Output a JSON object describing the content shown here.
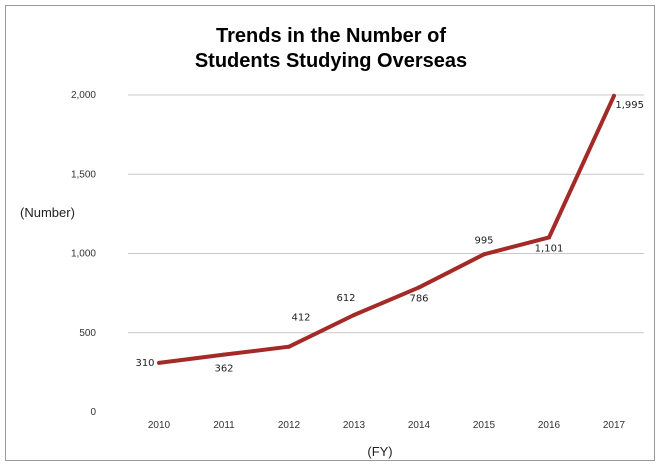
{
  "chart_data": {
    "type": "line",
    "title_lines": [
      "Trends in the Number of",
      "Students Studying Overseas"
    ],
    "xlabel": "(FY)",
    "ylabel": "(Number)",
    "categories": [
      "2010",
      "2011",
      "2012",
      "2013",
      "2014",
      "2015",
      "2016",
      "2017"
    ],
    "values": [
      310,
      362,
      412,
      612,
      786,
      995,
      1101,
      1995
    ],
    "value_labels": [
      "310",
      "362",
      "412",
      "612",
      "786",
      "995",
      "1,101",
      "1,995"
    ],
    "y_ticks": [
      0,
      500,
      1000,
      1500,
      2000
    ],
    "y_tick_labels": [
      "0",
      "500",
      "1,000",
      "1,500",
      "2,000"
    ],
    "ylim": [
      0,
      2000
    ],
    "grid": true,
    "line_color": "#a32a26",
    "grid_color": "#c8c8c8"
  }
}
